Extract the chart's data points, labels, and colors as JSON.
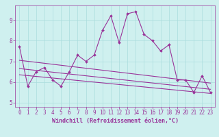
{
  "xlabel": "Windchill (Refroidissement éolien,°C)",
  "ylabel": "",
  "xlim": [
    -0.5,
    23.5
  ],
  "ylim": [
    4.8,
    9.7
  ],
  "xticks": [
    0,
    1,
    2,
    3,
    4,
    5,
    6,
    7,
    8,
    9,
    10,
    11,
    12,
    13,
    14,
    15,
    16,
    17,
    18,
    19,
    20,
    21,
    22,
    23
  ],
  "yticks": [
    5,
    6,
    7,
    8,
    9
  ],
  "background_color": "#cff0ef",
  "grid_color": "#aadddd",
  "line_color": "#993399",
  "line1": [
    7.7,
    5.8,
    6.5,
    6.7,
    6.1,
    5.8,
    6.5,
    7.3,
    7.0,
    7.3,
    8.5,
    9.2,
    7.9,
    9.3,
    9.4,
    8.3,
    8.0,
    7.5,
    7.8,
    6.1,
    6.1,
    5.5,
    6.3,
    5.5
  ],
  "trend1_x": [
    0,
    23
  ],
  "trend1_y": [
    7.05,
    5.95
  ],
  "trend2_x": [
    0,
    23
  ],
  "trend2_y": [
    6.65,
    5.65
  ],
  "trend3_x": [
    0,
    23
  ],
  "trend3_y": [
    6.35,
    5.45
  ],
  "font_size": 6,
  "tick_font_size": 5.5
}
